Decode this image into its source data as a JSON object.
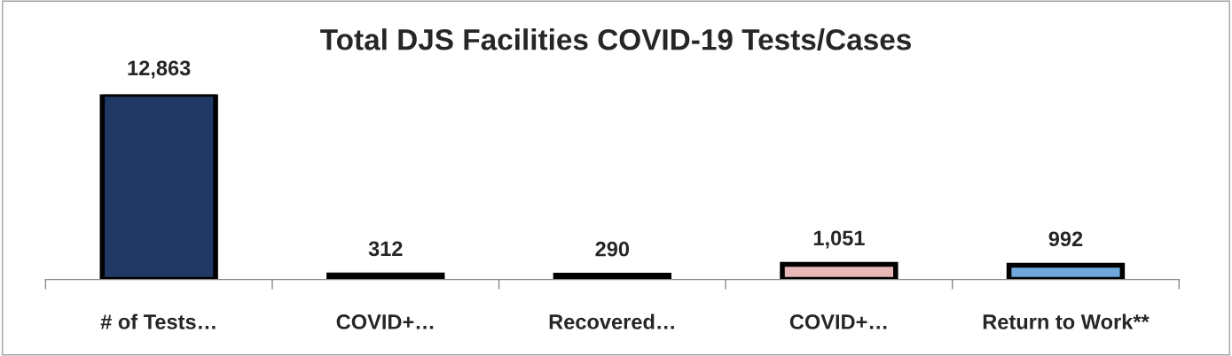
{
  "chart_data": {
    "type": "bar",
    "title": "Total DJS Facilities COVID-19 Tests/Cases",
    "categories": [
      "# of Tests…",
      "COVID+…",
      "Recovered…",
      "COVID+…",
      "Return to Work**"
    ],
    "values": [
      12863,
      312,
      290,
      1051,
      992
    ],
    "colors": [
      "#1f3864",
      "#b4c7e7",
      "#a9322c",
      "#e6b8b7",
      "#6fa8dc"
    ],
    "value_labels": [
      "12,863",
      "312",
      "290",
      "1,051",
      "992"
    ],
    "grid": false,
    "legend": false
  }
}
